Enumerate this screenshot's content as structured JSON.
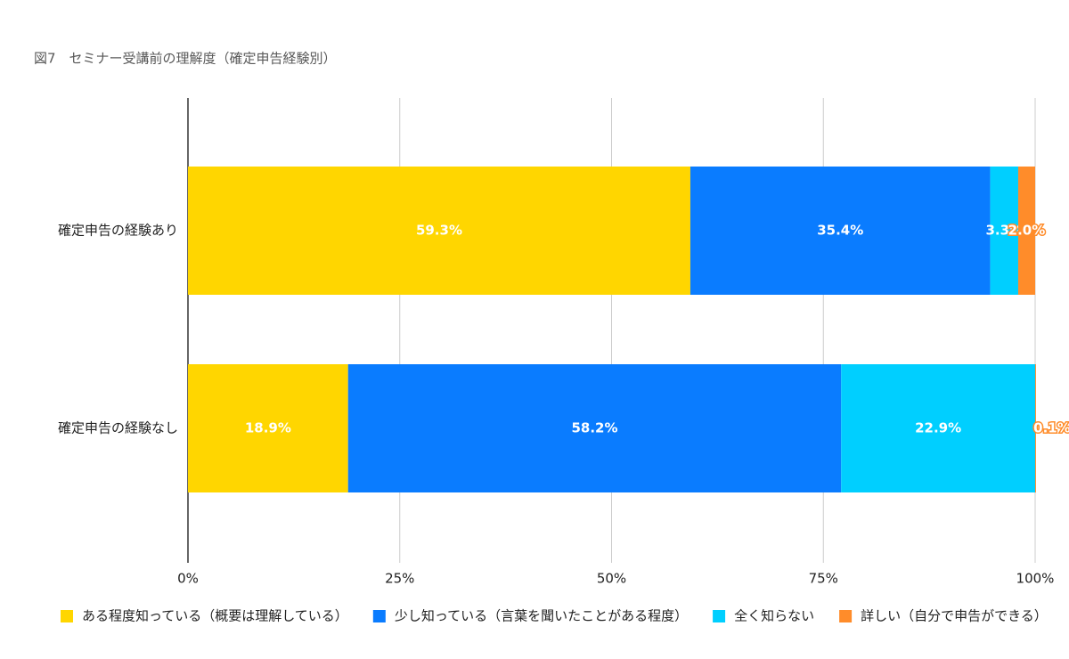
{
  "chart_data": {
    "type": "bar",
    "orientation": "horizontal",
    "stacked": true,
    "title": "図7　セミナー受講前の理解度（確定申告経験別）",
    "categories": [
      "確定申告の経験あり",
      "確定申告の経験なし"
    ],
    "series": [
      {
        "name": "ある程度知っている（概要は理解している）",
        "color": "#FFD600",
        "values": [
          59.3,
          18.9
        ],
        "value_labels": [
          "59.3%",
          "18.9%"
        ]
      },
      {
        "name": "少し知っている（言葉を聞いたことがある程度）",
        "color": "#0A7CFF",
        "values": [
          35.4,
          58.2
        ],
        "value_labels": [
          "35.4%",
          "58.2%"
        ]
      },
      {
        "name": "全く知らない",
        "color": "#00CFFF",
        "values": [
          3.3,
          22.9
        ],
        "value_labels": [
          "3.3%",
          "22.9%"
        ]
      },
      {
        "name": "詳しい（自分で申告ができる）",
        "color": "#FF8C2A",
        "values": [
          2.0,
          0.1
        ],
        "value_labels": [
          "2.0%",
          "0.1%"
        ]
      }
    ],
    "xlim": [
      0,
      100
    ],
    "xticks": [
      {
        "value": 0,
        "label": "0%"
      },
      {
        "value": 25,
        "label": "25%"
      },
      {
        "value": 50,
        "label": "50%"
      },
      {
        "value": 75,
        "label": "75%"
      },
      {
        "value": 100,
        "label": "100%"
      }
    ],
    "grid": true,
    "legend": "bottom"
  }
}
